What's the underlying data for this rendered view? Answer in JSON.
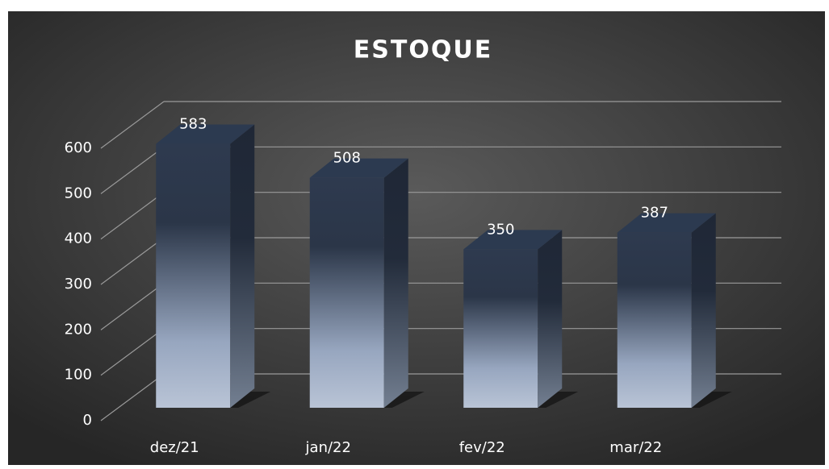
{
  "chart_data": {
    "type": "bar",
    "title": "ESTOQUE",
    "categories": [
      "dez/21",
      "jan/22",
      "fev/22",
      "mar/22"
    ],
    "values": [
      583,
      508,
      350,
      387
    ],
    "color": "#2c3a50",
    "ylim": [
      0,
      600
    ],
    "yticks": [
      0,
      100,
      200,
      300,
      400,
      500,
      600
    ],
    "grid": true
  }
}
